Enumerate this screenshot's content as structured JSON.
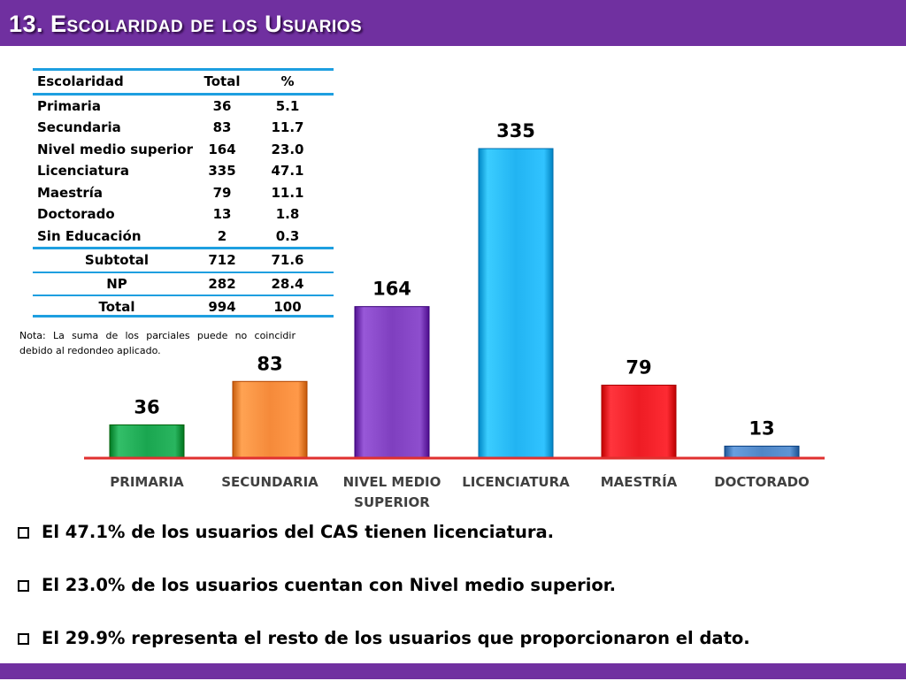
{
  "header": {
    "title": "13. Escolaridad de los Usuarios"
  },
  "table": {
    "headers": [
      "Escolaridad",
      "Total",
      "%"
    ],
    "rows": [
      [
        "Primaria",
        "36",
        "5.1"
      ],
      [
        "Secundaria",
        "83",
        "11.7"
      ],
      [
        "Nivel medio superior",
        "164",
        "23.0"
      ],
      [
        "Licenciatura",
        "335",
        "47.1"
      ],
      [
        "Maestría",
        "79",
        "11.1"
      ],
      [
        "Doctorado",
        "13",
        "1.8"
      ],
      [
        "Sin Educación",
        "2",
        "0.3"
      ]
    ],
    "subtotal": [
      "Subtotal",
      "712",
      "71.6"
    ],
    "np": [
      "NP",
      "282",
      "28.4"
    ],
    "total": [
      "Total",
      "994",
      "100"
    ]
  },
  "note": "Nota: La suma de los parciales puede no coincidir debido al redondeo aplicado.",
  "chart_data": {
    "type": "bar",
    "categories": [
      "PRIMARIA",
      "SECUNDARIA",
      "NIVEL MEDIO SUPERIOR",
      "LICENCIATURA",
      "MAESTRÍA",
      "DOCTORADO"
    ],
    "category_lines": [
      [
        "PRIMARIA"
      ],
      [
        "SECUNDARIA"
      ],
      [
        "NIVEL MEDIO",
        "SUPERIOR"
      ],
      [
        "LICENCIATURA"
      ],
      [
        "MAESTRÍA"
      ],
      [
        "DOCTORADO"
      ]
    ],
    "values": [
      36,
      83,
      164,
      335,
      79,
      13
    ],
    "colors": [
      "#1aa650",
      "#f58a3a",
      "#7f3fbf",
      "#22b4f2",
      "#ee1c24",
      "#4f86c6"
    ],
    "baseline_color": "#e0302f",
    "title": "",
    "xlabel": "",
    "ylabel": "",
    "ylim": [
      0,
      335
    ],
    "grid": false
  },
  "bullets": [
    "El 47.1% de los usuarios del CAS tienen licenciatura.",
    "El 23.0% de los usuarios cuentan con Nivel medio superior.",
    "El  29.9% representa el resto de los usuarios que proporcionaron el dato."
  ]
}
